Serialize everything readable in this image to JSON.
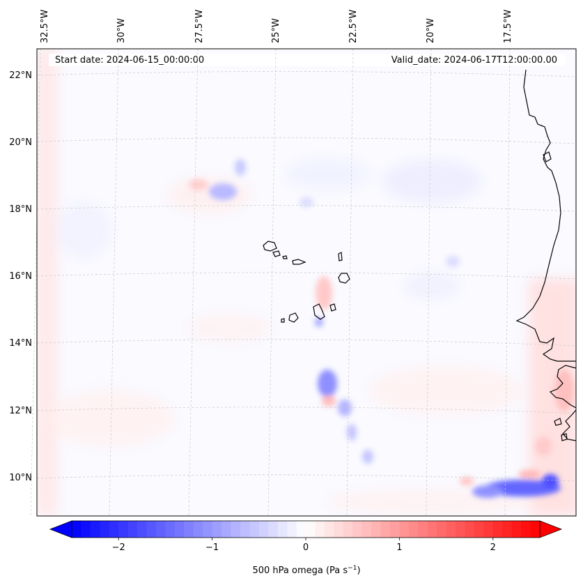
{
  "header": {
    "start_date": "Start date: 2024-06-15_00:00:00",
    "valid_date": "Valid_date: 2024-06-17T12:00:00.00"
  },
  "map": {
    "lon_labels": [
      "32.5°W",
      "30°W",
      "27.5°W",
      "25°W",
      "22.5°W",
      "20°W",
      "17.5°W"
    ],
    "lat_labels": [
      "22°N",
      "20°N",
      "18°N",
      "16°N",
      "14°N",
      "12°N",
      "10°N"
    ],
    "gridlines": true,
    "coastline_color": "#000000",
    "background_color": "#fafaff"
  },
  "colorbar": {
    "ticks": [
      "−2",
      "−1",
      "0",
      "1",
      "2"
    ],
    "tick_values": [
      -2,
      -1,
      0,
      1,
      2
    ],
    "range": [
      -2.5,
      2.5
    ],
    "extend": "both",
    "colormap": "bwr",
    "low_color": "#0000ff",
    "mid_color": "#ffffff",
    "high_color": "#ff0000",
    "label_main": "500 hPa omega (Pa s",
    "label_exp": "−1",
    "label_end": ")"
  }
}
